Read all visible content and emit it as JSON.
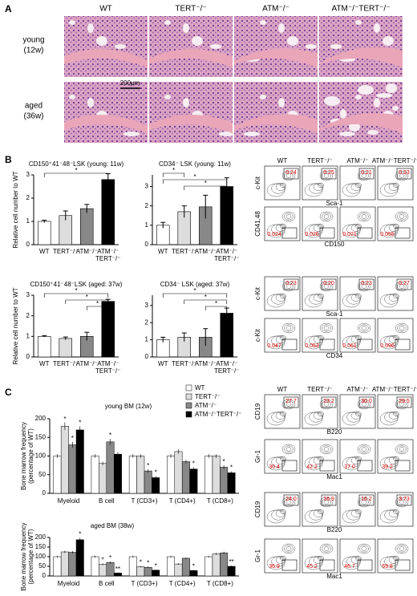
{
  "panel_labels": [
    "A",
    "B",
    "C"
  ],
  "genotypes": [
    "WT",
    "TERT⁻/⁻",
    "ATM⁻/⁻",
    "ATM⁻/⁻TERT⁻/⁻"
  ],
  "histology": {
    "rows": [
      [
        "young",
        "(12w)"
      ],
      [
        "aged",
        "(36w)"
      ]
    ],
    "scale_bar": "200μm"
  },
  "chart_data": [
    {
      "type": "bar",
      "title": "CD150⁺41⁻48⁻LSK (young: 11w)",
      "ylabel": "Relative cell number to WT",
      "categories": [
        "WT",
        "TERT⁻/⁻",
        "ATM⁻/⁻",
        [
          "ATM⁻/⁻",
          "TERT⁻/⁻"
        ]
      ],
      "values": [
        1,
        1.25,
        1.55,
        2.8
      ],
      "errors": [
        0.05,
        0.2,
        0.18,
        0.25
      ],
      "colors": [
        "#ffffff",
        "#dddddd",
        "#888888",
        "#000000"
      ],
      "ylim": [
        0,
        3
      ],
      "yticks": [
        0,
        1,
        2,
        3
      ],
      "stars": [
        "*"
      ]
    },
    {
      "type": "bar",
      "title": "CD34⁻ LSK (young: 11w)",
      "categories": [
        "WT",
        "TERT⁻/⁻",
        "ATM⁻/⁻",
        [
          "ATM⁻/⁻",
          "TERT⁻/⁻"
        ]
      ],
      "values": [
        1,
        1.7,
        1.95,
        3
      ],
      "errors": [
        0.15,
        0.3,
        0.6,
        0.45
      ],
      "colors": [
        "#ffffff",
        "#dddddd",
        "#888888",
        "#000000"
      ],
      "ylim": [
        0,
        3.6
      ],
      "yticks": [
        0,
        1,
        2,
        3
      ],
      "stars": [
        "*",
        "*",
        "*"
      ]
    },
    {
      "type": "bar",
      "title": "CD150⁺41⁻48⁻LSK (aged: 37w)",
      "ylabel": "Relative cell number to WT",
      "categories": [
        "WT",
        "TERT⁻/⁻",
        "ATM⁻/⁻",
        [
          "ATM⁻/⁻",
          "TERT⁻/⁻"
        ]
      ],
      "values": [
        1,
        0.9,
        1,
        2.7
      ],
      "errors": [
        0.03,
        0.07,
        0.2,
        0.1
      ],
      "colors": [
        "#ffffff",
        "#dddddd",
        "#888888",
        "#000000"
      ],
      "ylim": [
        0,
        3
      ],
      "yticks": [
        0,
        1,
        2,
        3
      ],
      "stars": [
        "*",
        "*",
        "*"
      ]
    },
    {
      "type": "bar",
      "title": "CD34⁻ LSK (aged: 37w)",
      "categories": [
        "WT",
        "TERT⁻/⁻",
        "ATM⁻/⁻",
        [
          "ATM⁻/⁻",
          "TERT⁻/⁻"
        ]
      ],
      "values": [
        1,
        1.15,
        1.15,
        2.55
      ],
      "errors": [
        0.15,
        0.25,
        0.5,
        0.3
      ],
      "colors": [
        "#ffffff",
        "#dddddd",
        "#888888",
        "#000000"
      ],
      "ylim": [
        0,
        3.6
      ],
      "yticks": [
        0,
        1,
        2,
        3
      ],
      "stars": [
        "*",
        "*",
        "*"
      ]
    },
    {
      "type": "grouped",
      "title": "young BM (12w)",
      "ylabel": [
        "Bone marrow frequency",
        "(percentage of WT)"
      ],
      "categories": [
        "Myeloid",
        "B cell",
        "T (CD3+)",
        "T (CD4+)",
        "T (CD8+)"
      ],
      "ylim": [
        0,
        200
      ],
      "yticks": [
        0,
        50,
        100,
        150,
        200
      ],
      "series": [
        {
          "name": "WT",
          "color": "#ffffff",
          "values": [
            100,
            100,
            100,
            100,
            100
          ],
          "errors": [
            5,
            5,
            5,
            5,
            5
          ],
          "stars": [
            null,
            null,
            null,
            null,
            null
          ]
        },
        {
          "name": "TERT⁻/⁻",
          "color": "#dddddd",
          "values": [
            180,
            80,
            100,
            112,
            100
          ],
          "errors": [
            10,
            5,
            5,
            6,
            5
          ],
          "stars": [
            "*",
            null,
            null,
            null,
            null
          ]
        },
        {
          "name": "ATM⁻/⁻",
          "color": "#888888",
          "values": [
            130,
            138,
            60,
            85,
            70
          ],
          "errors": [
            8,
            8,
            5,
            5,
            5
          ],
          "stars": [
            "*",
            "*",
            "*",
            null,
            "*"
          ]
        },
        {
          "name": "ATM⁻/⁻TERT⁻/⁻",
          "color": "#000000",
          "values": [
            170,
            105,
            42,
            65,
            55
          ],
          "errors": [
            10,
            6,
            4,
            5,
            4
          ],
          "stars": [
            "*",
            null,
            "*",
            "*",
            "*"
          ]
        }
      ]
    },
    {
      "type": "grouped",
      "title": "aged BM (38w)",
      "ylabel": [
        "Bone marrow frequency",
        "(percentage of WT)"
      ],
      "categories": [
        "Myeloid",
        "B cell",
        "T (CD3+)",
        "T (CD4+)",
        "T (CD8+)"
      ],
      "ylim": [
        0,
        200
      ],
      "yticks": [
        0,
        50,
        100,
        150,
        200
      ],
      "series": [
        {
          "name": "WT",
          "color": "#ffffff",
          "values": [
            100,
            100,
            100,
            100,
            100
          ],
          "errors": [
            5,
            5,
            5,
            5,
            5
          ],
          "stars": [
            null,
            null,
            null,
            null,
            null
          ]
        },
        {
          "name": "TERT⁻/⁻",
          "color": "#dddddd",
          "values": [
            125,
            60,
            48,
            62,
            115
          ],
          "errors": [
            6,
            5,
            4,
            4,
            6
          ],
          "stars": [
            null,
            "*",
            "*",
            null,
            null
          ]
        },
        {
          "name": "ATM⁻/⁻",
          "color": "#888888",
          "values": [
            123,
            70,
            45,
            92,
            120
          ],
          "errors": [
            6,
            5,
            4,
            5,
            6
          ],
          "stars": [
            null,
            "*",
            "*",
            null,
            null
          ]
        },
        {
          "name": "ATM⁻/⁻TERT⁻/⁻",
          "color": "#000000",
          "values": [
            188,
            15,
            30,
            28,
            50
          ],
          "errors": [
            10,
            3,
            3,
            3,
            4
          ],
          "stars": [
            "*",
            "**",
            "*",
            "*",
            "**"
          ]
        }
      ]
    }
  ],
  "flow": {
    "B": [
      {
        "y_axis": "c-Kit",
        "x_axis": "Sca-1",
        "values": [
          "0.24",
          "0.25",
          "0.21",
          "0.33"
        ]
      },
      {
        "y_axis": "CD41,48",
        "x_axis": "CD150",
        "values": [
          "0.024",
          "0.026",
          "0.021",
          "0.055"
        ]
      },
      {
        "y_axis": "c-Kit",
        "x_axis": "Sca-1",
        "values": [
          "0.23",
          "0.20",
          "0.23",
          "0.27"
        ]
      },
      {
        "y_axis": "c-Kit",
        "x_axis": "CD34",
        "values": [
          "0.047",
          "0.053",
          "0.061",
          "0.096"
        ]
      }
    ],
    "C": [
      {
        "y_axis": "CD19",
        "x_axis": "B220",
        "values": [
          "27.7",
          "23.2",
          "30.0",
          "29.5"
        ]
      },
      {
        "y_axis": "Gr-1",
        "x_axis": "Mac1",
        "values": [
          "30.4",
          "42.2",
          "37.0",
          "39.2"
        ]
      },
      {
        "y_axis": "CD19",
        "x_axis": "B220",
        "values": [
          "24.0",
          "16.9",
          "16.2",
          "3.73"
        ]
      },
      {
        "y_axis": "Gr-1",
        "x_axis": "Mac1",
        "values": [
          "36.9",
          "45.2",
          "46.7",
          "69.8"
        ]
      }
    ]
  }
}
